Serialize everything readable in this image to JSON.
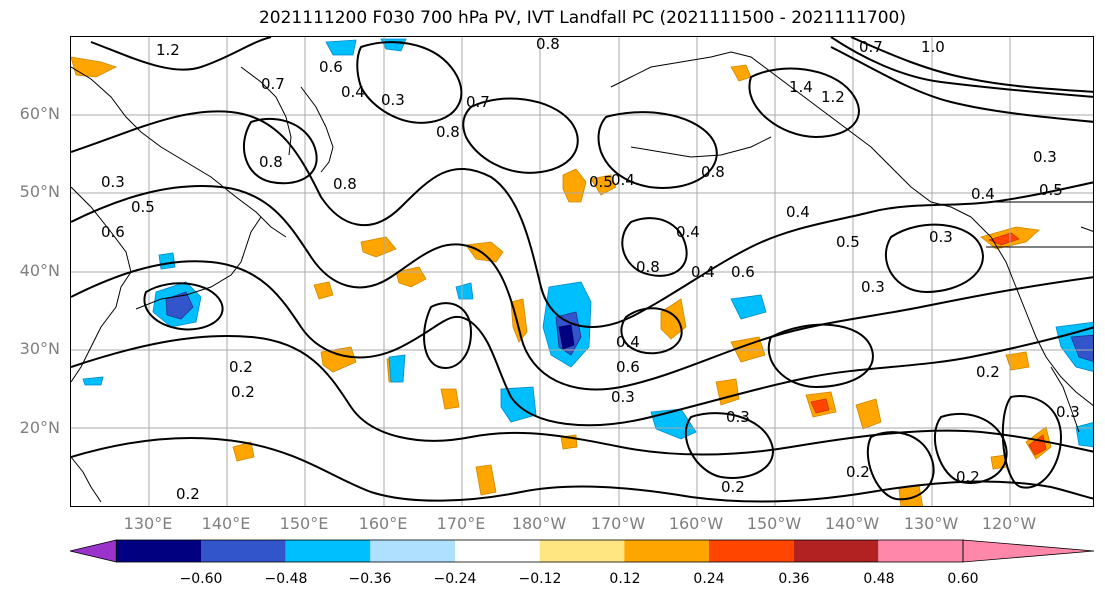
{
  "title": "2021111200 F030 700 hPa PV, IVT Landfall PC (2021111500 - 2021111700)",
  "lat_labels": [
    "60°N",
    "50°N",
    "40°N",
    "30°N",
    "20°N"
  ],
  "lon_labels": [
    "130°E",
    "140°E",
    "150°E",
    "160°E",
    "170°E",
    "180°W",
    "170°W",
    "160°W",
    "150°W",
    "140°W",
    "130°W",
    "120°W"
  ],
  "colorbar": {
    "ticks": [
      "−0.60",
      "−0.48",
      "−0.36",
      "−0.24",
      "−0.12",
      "0.12",
      "0.24",
      "0.36",
      "0.48",
      "0.60"
    ],
    "colors": [
      "#9933cc",
      "#000080",
      "#3355cc",
      "#00bfff",
      "#b0e0ff",
      "#ffffff",
      "#ffe680",
      "#ffa500",
      "#ff4500",
      "#b22222",
      "#ff88aa"
    ]
  },
  "contour_labels": [
    "1.2",
    "0.7",
    "0.6",
    "0.4",
    "0.3",
    "0.8",
    "0.7",
    "0.8",
    "0.8",
    "0.8",
    "0.5",
    "0.4",
    "0.3",
    "0.6",
    "0.5",
    "0.2",
    "0.2",
    "0.3",
    "0.4",
    "0.6",
    "0.4",
    "0.8",
    "0.4",
    "0.6",
    "0.5",
    "0.4",
    "0.3",
    "0.3",
    "0.2",
    "0.3",
    "0.2",
    "0.2",
    "1.0",
    "0.7",
    "1.4",
    "1.2",
    "0.8",
    "0.4",
    "0.5",
    "0.3",
    "0.2",
    "0.3",
    "0.2"
  ]
}
